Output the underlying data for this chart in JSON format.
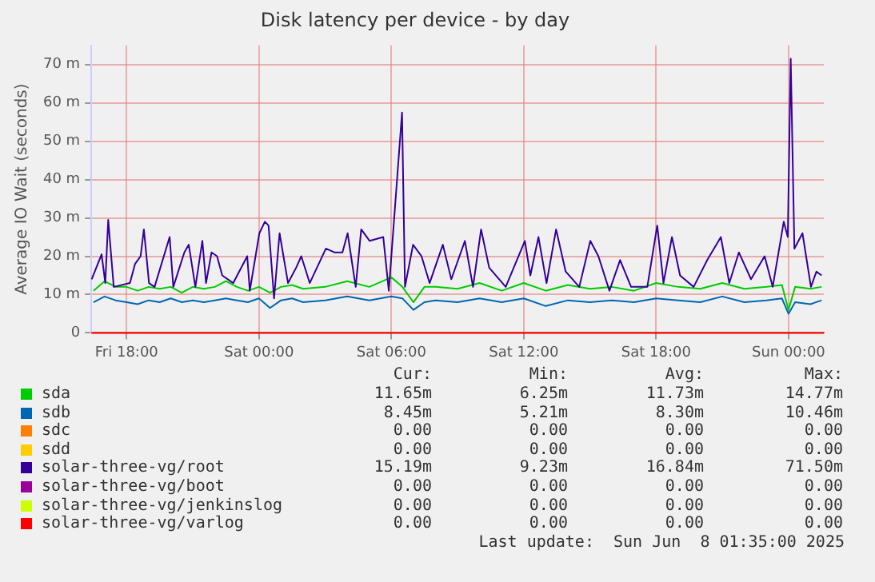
{
  "chart_data": {
    "type": "line",
    "title": "Disk latency per device - by day",
    "ylabel": "Average IO Wait (seconds)",
    "xlim": [
      "2025-06-06T16:24",
      "2025-06-08T01:36"
    ],
    "xticks": [
      {
        "value": "2025-06-06T18:00",
        "label": "Fri 18:00"
      },
      {
        "value": "2025-06-07T00:00",
        "label": "Sat 00:00"
      },
      {
        "value": "2025-06-07T06:00",
        "label": "Sat 06:00"
      },
      {
        "value": "2025-06-07T12:00",
        "label": "Sat 12:00"
      },
      {
        "value": "2025-06-07T18:00",
        "label": "Sat 18:00"
      },
      {
        "value": "2025-06-08T00:00",
        "label": "Sun 00:00"
      }
    ],
    "ylim": [
      0,
      75
    ],
    "yticks": [
      0,
      {
        "value": 10,
        "label": "10 m"
      },
      {
        "value": 20,
        "label": "20 m"
      },
      {
        "value": 30,
        "label": "30 m"
      },
      {
        "value": 40,
        "label": "40 m"
      },
      {
        "value": 50,
        "label": "50 m"
      },
      {
        "value": 60,
        "label": "60 m"
      },
      {
        "value": 70,
        "label": "70 m"
      }
    ],
    "grid": true,
    "legend": "bottom",
    "marker": "none",
    "line_style": "solid",
    "series": [
      {
        "name": "sda",
        "color": "#00cc00",
        "x": [
          "2025-06-06T16:30",
          "2025-06-06T17:00",
          "2025-06-06T17:30",
          "2025-06-06T18:00",
          "2025-06-06T18:30",
          "2025-06-06T19:00",
          "2025-06-06T19:30",
          "2025-06-06T20:00",
          "2025-06-06T20:30",
          "2025-06-06T21:00",
          "2025-06-06T21:30",
          "2025-06-06T22:00",
          "2025-06-06T22:30",
          "2025-06-06T23:00",
          "2025-06-06T23:30",
          "2025-06-07T00:00",
          "2025-06-07T00:30",
          "2025-06-07T01:00",
          "2025-06-07T01:30",
          "2025-06-07T02:00",
          "2025-06-07T03:00",
          "2025-06-07T04:00",
          "2025-06-07T05:00",
          "2025-06-07T06:00",
          "2025-06-07T06:30",
          "2025-06-07T07:00",
          "2025-06-07T07:30",
          "2025-06-07T08:00",
          "2025-06-07T09:00",
          "2025-06-07T10:00",
          "2025-06-07T11:00",
          "2025-06-07T12:00",
          "2025-06-07T13:00",
          "2025-06-07T14:00",
          "2025-06-07T15:00",
          "2025-06-07T16:00",
          "2025-06-07T17:00",
          "2025-06-07T18:00",
          "2025-06-07T19:00",
          "2025-06-07T20:00",
          "2025-06-07T21:00",
          "2025-06-07T22:00",
          "2025-06-07T23:00",
          "2025-06-07T23:42",
          "2025-06-08T00:00",
          "2025-06-08T00:18",
          "2025-06-08T01:00",
          "2025-06-08T01:30"
        ],
        "values": [
          11,
          13.5,
          12,
          12,
          11,
          12,
          11.5,
          12,
          10.5,
          12,
          11.5,
          12,
          13.5,
          12,
          11,
          12,
          10.5,
          12,
          12.5,
          11.5,
          12,
          13.5,
          12,
          14.5,
          12,
          8,
          12,
          12,
          11.5,
          13,
          11,
          13,
          11,
          12.5,
          11.5,
          12,
          11,
          13,
          12,
          11.5,
          13,
          11.5,
          12,
          12.5,
          6,
          12,
          11.5,
          12
        ]
      },
      {
        "name": "sdb",
        "color": "#0066b3",
        "x": [
          "2025-06-06T16:30",
          "2025-06-06T17:00",
          "2025-06-06T17:30",
          "2025-06-06T18:00",
          "2025-06-06T18:30",
          "2025-06-06T19:00",
          "2025-06-06T19:30",
          "2025-06-06T20:00",
          "2025-06-06T20:30",
          "2025-06-06T21:00",
          "2025-06-06T21:30",
          "2025-06-06T22:00",
          "2025-06-06T22:30",
          "2025-06-06T23:00",
          "2025-06-06T23:30",
          "2025-06-07T00:00",
          "2025-06-07T00:30",
          "2025-06-07T01:00",
          "2025-06-07T01:30",
          "2025-06-07T02:00",
          "2025-06-07T03:00",
          "2025-06-07T04:00",
          "2025-06-07T05:00",
          "2025-06-07T06:00",
          "2025-06-07T06:30",
          "2025-06-07T07:00",
          "2025-06-07T07:30",
          "2025-06-07T08:00",
          "2025-06-07T09:00",
          "2025-06-07T10:00",
          "2025-06-07T11:00",
          "2025-06-07T12:00",
          "2025-06-07T13:00",
          "2025-06-07T14:00",
          "2025-06-07T15:00",
          "2025-06-07T16:00",
          "2025-06-07T17:00",
          "2025-06-07T18:00",
          "2025-06-07T19:00",
          "2025-06-07T20:00",
          "2025-06-07T21:00",
          "2025-06-07T22:00",
          "2025-06-07T23:00",
          "2025-06-07T23:42",
          "2025-06-08T00:00",
          "2025-06-08T00:18",
          "2025-06-08T01:00",
          "2025-06-08T01:30"
        ],
        "values": [
          8,
          9.5,
          8.5,
          8,
          7.5,
          8.5,
          8,
          9,
          8,
          8.5,
          8,
          8.5,
          9,
          8.5,
          8,
          9,
          6.5,
          8.5,
          9,
          8,
          8.5,
          9.5,
          8.5,
          9.5,
          9,
          6,
          8,
          8.5,
          8,
          9,
          8,
          9,
          7,
          8.5,
          8,
          8.5,
          8,
          9,
          8.5,
          8,
          9.5,
          8,
          8.5,
          9,
          5,
          8,
          7.5,
          8.5
        ]
      },
      {
        "name": "sdc",
        "color": "#ff8000"
      },
      {
        "name": "sdd",
        "color": "#ffcc00"
      },
      {
        "name": "solar-three-vg/root",
        "color": "#330099",
        "x": [
          "2025-06-06T16:25",
          "2025-06-06T16:52",
          "2025-06-06T17:02",
          "2025-06-06T17:10",
          "2025-06-06T17:25",
          "2025-06-06T18:09",
          "2025-06-06T18:23",
          "2025-06-06T18:38",
          "2025-06-06T18:47",
          "2025-06-06T19:01",
          "2025-06-06T19:16",
          "2025-06-06T19:57",
          "2025-06-06T20:07",
          "2025-06-06T20:37",
          "2025-06-06T20:49",
          "2025-06-06T21:07",
          "2025-06-06T21:26",
          "2025-06-06T21:36",
          "2025-06-06T21:51",
          "2025-06-06T22:06",
          "2025-06-06T22:20",
          "2025-06-06T22:50",
          "2025-06-06T23:28",
          "2025-06-06T23:35",
          "2025-06-07T00:01",
          "2025-06-07T00:16",
          "2025-06-07T00:26",
          "2025-06-07T00:41",
          "2025-06-07T00:56",
          "2025-06-07T01:19",
          "2025-06-07T01:41",
          "2025-06-07T01:55",
          "2025-06-07T02:18",
          "2025-06-07T03:02",
          "2025-06-07T03:25",
          "2025-06-07T03:47",
          "2025-06-07T04:01",
          "2025-06-07T04:23",
          "2025-06-07T04:38",
          "2025-06-07T05:01",
          "2025-06-07T05:38",
          "2025-06-07T05:53",
          "2025-06-07T06:29",
          "2025-06-07T06:37",
          "2025-06-07T06:59",
          "2025-06-07T07:22",
          "2025-06-07T07:44",
          "2025-06-07T08:20",
          "2025-06-07T08:43",
          "2025-06-07T09:20",
          "2025-06-07T09:42",
          "2025-06-07T10:04",
          "2025-06-07T10:26",
          "2025-06-07T11:11",
          "2025-06-07T12:03",
          "2025-06-07T12:18",
          "2025-06-07T12:40",
          "2025-06-07T13:02",
          "2025-06-07T13:28",
          "2025-06-07T13:54",
          "2025-06-07T14:31",
          "2025-06-07T15:01",
          "2025-06-07T15:23",
          "2025-06-07T15:53",
          "2025-06-07T16:22",
          "2025-06-07T16:52",
          "2025-06-07T17:36",
          "2025-06-07T18:03",
          "2025-06-07T18:20",
          "2025-06-07T18:43",
          "2025-06-07T19:05",
          "2025-06-07T19:42",
          "2025-06-07T20:19",
          "2025-06-07T20:56",
          "2025-06-07T21:19",
          "2025-06-07T21:45",
          "2025-06-07T22:18",
          "2025-06-07T22:55",
          "2025-06-07T23:17",
          "2025-06-07T23:47",
          "2025-06-07T23:58",
          "2025-06-08T00:06",
          "2025-06-08T00:16",
          "2025-06-08T00:38",
          "2025-06-08T01:01",
          "2025-06-08T01:16",
          "2025-06-08T01:30"
        ],
        "values": [
          14,
          20.5,
          13,
          29.5,
          12,
          13,
          18,
          20,
          27,
          13,
          12,
          25,
          12,
          21,
          23,
          12,
          24,
          13,
          21,
          20,
          15,
          13,
          20,
          11,
          26,
          29,
          28,
          9,
          26,
          13,
          17,
          20,
          13,
          22,
          21,
          21,
          26,
          12,
          27,
          24,
          25,
          11,
          57.5,
          12,
          23,
          20,
          13,
          23,
          14,
          24,
          12,
          27,
          17,
          12,
          24,
          15,
          25,
          13,
          27,
          16,
          12,
          24,
          20,
          11,
          19,
          12,
          12,
          28,
          13,
          25,
          15,
          12,
          19,
          25,
          13,
          21,
          14,
          20,
          12,
          29,
          25,
          71.5,
          22,
          26,
          12,
          16,
          15
        ]
      },
      {
        "name": "solar-three-vg/boot",
        "color": "#990099"
      },
      {
        "name": "solar-three-vg/jenkinslog",
        "color": "#ccff00"
      },
      {
        "name": "solar-three-vg/varlog",
        "color": "#ff0000",
        "x": [
          "2025-06-06T16:24",
          "2025-06-08T01:36"
        ],
        "values": [
          0,
          0
        ]
      }
    ],
    "annotations": [
      "Cur:",
      "Min:",
      "Avg:",
      "Max:",
      "11.65m",
      "6.25m",
      "11.73m",
      "14.77m",
      "8.45m",
      "5.21m",
      "8.30m",
      "10.46m",
      "0.00",
      "0.00",
      "0.00",
      "0.00",
      "0.00",
      "0.00",
      "0.00",
      "0.00",
      "15.19m",
      "9.23m",
      "16.84m",
      "71.50m",
      "0.00",
      "0.00",
      "0.00",
      "0.00",
      "0.00",
      "0.00",
      "0.00",
      "0.00",
      "0.00",
      "0.00",
      "0.00",
      "0.00",
      "Last update:  Sun Jun  8 01:35:00 2025"
    ]
  }
}
